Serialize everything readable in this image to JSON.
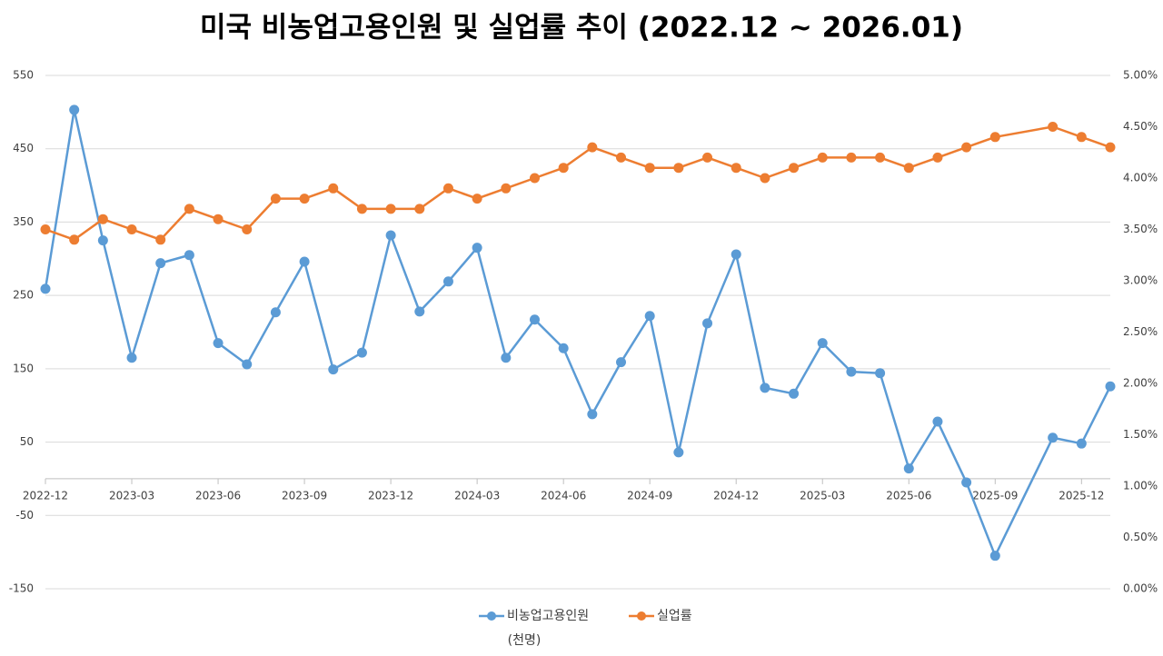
{
  "chart_data": {
    "type": "line",
    "title": "미국 비농업고용인원 및 실업률 추이 (2022.12 ~ 2026.01)",
    "y_label": "(천명)",
    "x": [
      "2022-12",
      "2023-01",
      "2023-02",
      "2023-03",
      "2023-04",
      "2023-05",
      "2023-06",
      "2023-07",
      "2023-08",
      "2023-09",
      "2023-10",
      "2023-11",
      "2023-12",
      "2024-01",
      "2024-02",
      "2024-03",
      "2024-04",
      "2024-05",
      "2024-06",
      "2024-07",
      "2024-08",
      "2024-09",
      "2024-10",
      "2024-11",
      "2024-12",
      "2025-01",
      "2025-02",
      "2025-03",
      "2025-04",
      "2025-05",
      "2025-06",
      "2025-07",
      "2025-08",
      "2025-09",
      "2025-11",
      "2025-12",
      "2026-01"
    ],
    "xlim": [
      "2022-12",
      "2026-01"
    ],
    "xticks": [
      "2022-12",
      "2023-03",
      "2023-06",
      "2023-09",
      "2023-12",
      "2024-03",
      "2024-06",
      "2024-09",
      "2024-12",
      "2025-03",
      "2025-06",
      "2025-09",
      "2025-12"
    ],
    "series": [
      {
        "name": "비농업고용인원",
        "color": "#5b9bd5",
        "axis": "y",
        "values": [
          259,
          503,
          325,
          165,
          294,
          305,
          185,
          156,
          227,
          296,
          149,
          172,
          332,
          228,
          269,
          315,
          165,
          217,
          178,
          88,
          159,
          222,
          36,
          212,
          306,
          124,
          116,
          185,
          146,
          144,
          14,
          78,
          -5,
          -105,
          56,
          48,
          126
        ]
      },
      {
        "name": "실업률",
        "color": "#ed7d31",
        "axis": "y2",
        "values": [
          3.5,
          3.4,
          3.6,
          3.5,
          3.4,
          3.7,
          3.6,
          3.5,
          3.8,
          3.8,
          3.9,
          3.7,
          3.7,
          3.7,
          3.9,
          3.8,
          3.9,
          4.0,
          4.1,
          4.3,
          4.2,
          4.1,
          4.1,
          4.2,
          4.1,
          4.0,
          4.1,
          4.2,
          4.2,
          4.2,
          4.1,
          4.2,
          4.3,
          4.4,
          4.5,
          4.4,
          4.3
        ]
      }
    ],
    "ylim": [
      -150,
      550
    ],
    "yticks": [
      -150,
      -50,
      50,
      150,
      250,
      350,
      450,
      550
    ],
    "y2lim": [
      0,
      5
    ],
    "y2ticks": [
      {
        "value": 0,
        "label": "0.00%"
      },
      {
        "value": 0.5,
        "label": "0.50%"
      },
      {
        "value": 1,
        "label": "1.00%"
      },
      {
        "value": 1.5,
        "label": "1.50%"
      },
      {
        "value": 2,
        "label": "2.00%"
      },
      {
        "value": 2.5,
        "label": "2.50%"
      },
      {
        "value": 3,
        "label": "3.00%"
      },
      {
        "value": 3.5,
        "label": "3.50%"
      },
      {
        "value": 4,
        "label": "4.00%"
      },
      {
        "value": 4.5,
        "label": "4.50%"
      },
      {
        "value": 5,
        "label": "5.00%"
      }
    ],
    "grid": true
  }
}
